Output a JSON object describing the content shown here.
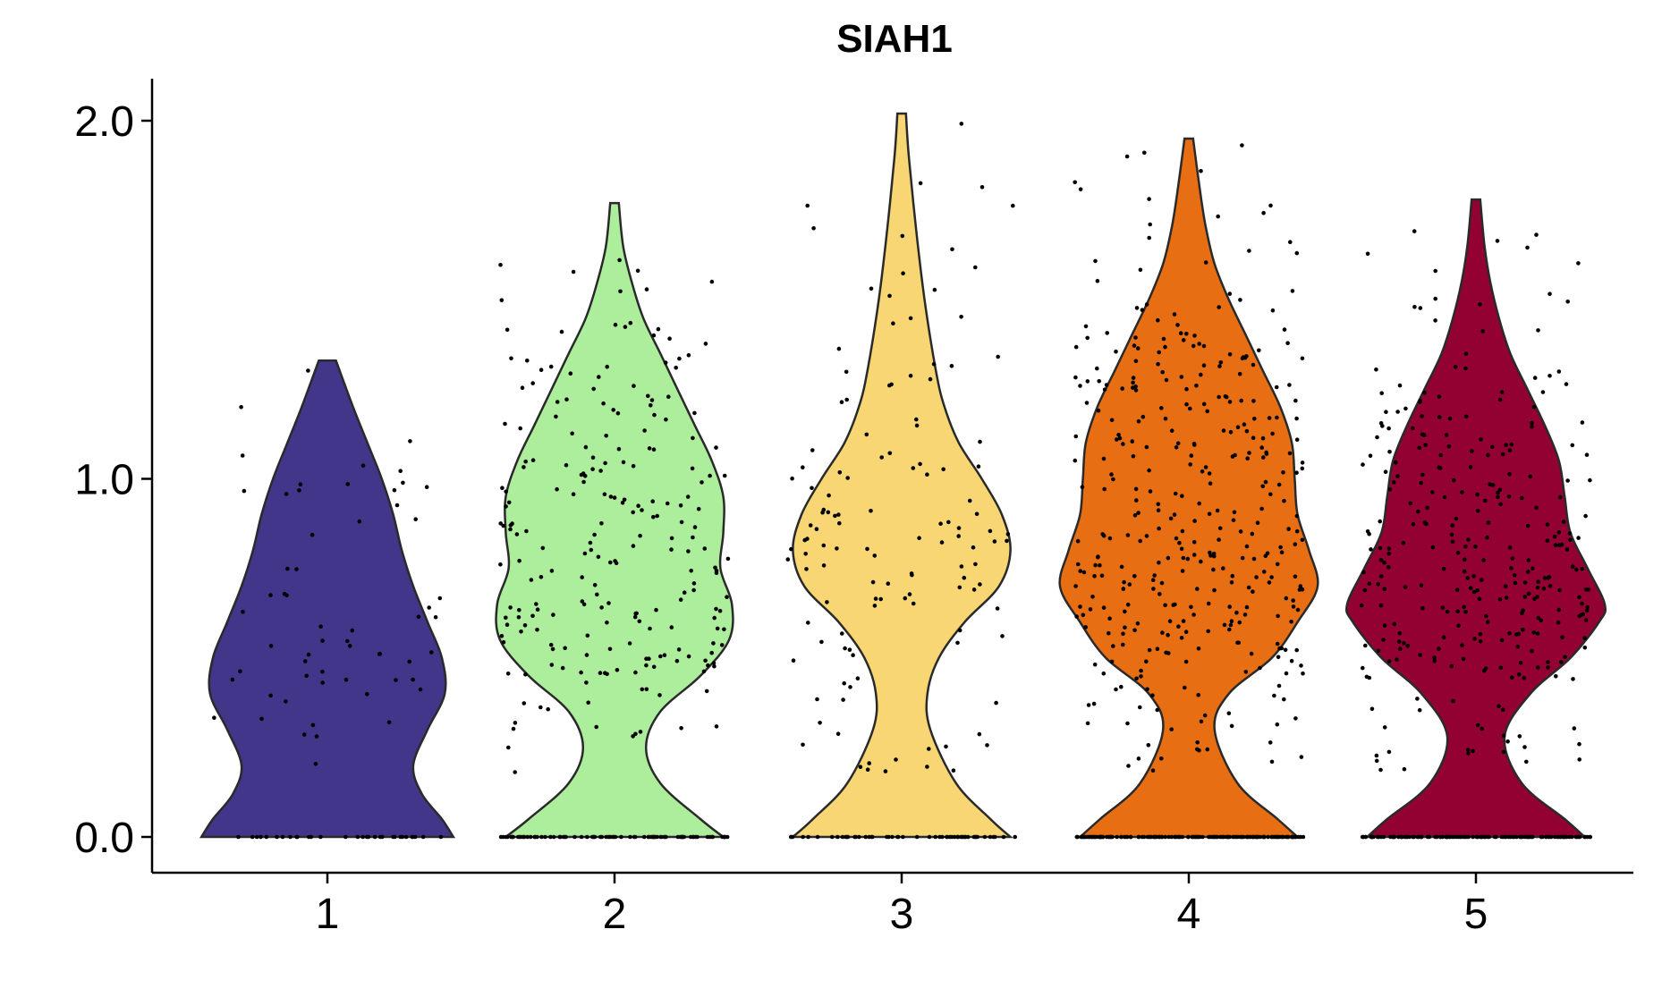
{
  "chart_data": {
    "type": "violin",
    "title": "SIAH1",
    "xlabel": "",
    "ylabel": "",
    "ylim": [
      -0.1,
      2.1
    ],
    "yticks": [
      {
        "value": 0.0,
        "label": "0.0"
      },
      {
        "value": 1.0,
        "label": "1.0"
      },
      {
        "value": 2.0,
        "label": "2.0"
      }
    ],
    "categories": [
      "1",
      "2",
      "3",
      "4",
      "5"
    ],
    "colors": [
      "#41368A",
      "#ADEE9C",
      "#F8D673",
      "#E76E12",
      "#930133"
    ],
    "grid": false,
    "legend": "none",
    "series": [
      {
        "category": "1",
        "color": "#41368A",
        "max": 1.33,
        "n_points": 90,
        "zero_fraction": 0.35,
        "density": [
          [
            0.0,
            0.44
          ],
          [
            0.05,
            0.4
          ],
          [
            0.12,
            0.33
          ],
          [
            0.2,
            0.3
          ],
          [
            0.3,
            0.35
          ],
          [
            0.4,
            0.41
          ],
          [
            0.5,
            0.4
          ],
          [
            0.6,
            0.35
          ],
          [
            0.7,
            0.3
          ],
          [
            0.8,
            0.26
          ],
          [
            0.9,
            0.23
          ],
          [
            1.0,
            0.19
          ],
          [
            1.1,
            0.14
          ],
          [
            1.2,
            0.09
          ],
          [
            1.33,
            0.03
          ]
        ]
      },
      {
        "category": "2",
        "color": "#ADEE9C",
        "max": 1.77,
        "n_points": 310,
        "zero_fraction": 0.28,
        "density": [
          [
            0.0,
            0.38
          ],
          [
            0.05,
            0.3
          ],
          [
            0.15,
            0.16
          ],
          [
            0.25,
            0.11
          ],
          [
            0.35,
            0.16
          ],
          [
            0.45,
            0.3
          ],
          [
            0.55,
            0.4
          ],
          [
            0.65,
            0.41
          ],
          [
            0.75,
            0.37
          ],
          [
            0.85,
            0.38
          ],
          [
            0.95,
            0.38
          ],
          [
            1.05,
            0.34
          ],
          [
            1.15,
            0.28
          ],
          [
            1.25,
            0.22
          ],
          [
            1.35,
            0.16
          ],
          [
            1.45,
            0.1
          ],
          [
            1.55,
            0.06
          ],
          [
            1.65,
            0.03
          ],
          [
            1.77,
            0.015
          ]
        ]
      },
      {
        "category": "3",
        "color": "#F8D673",
        "max": 2.02,
        "n_points": 180,
        "zero_fraction": 0.3,
        "density": [
          [
            0.0,
            0.38
          ],
          [
            0.05,
            0.31
          ],
          [
            0.15,
            0.19
          ],
          [
            0.3,
            0.1
          ],
          [
            0.4,
            0.09
          ],
          [
            0.5,
            0.13
          ],
          [
            0.6,
            0.22
          ],
          [
            0.7,
            0.34
          ],
          [
            0.8,
            0.38
          ],
          [
            0.9,
            0.35
          ],
          [
            1.0,
            0.28
          ],
          [
            1.1,
            0.2
          ],
          [
            1.2,
            0.15
          ],
          [
            1.3,
            0.12
          ],
          [
            1.5,
            0.08
          ],
          [
            1.7,
            0.05
          ],
          [
            1.9,
            0.025
          ],
          [
            2.02,
            0.015
          ]
        ]
      },
      {
        "category": "4",
        "color": "#E76E12",
        "max": 1.95,
        "n_points": 520,
        "zero_fraction": 0.3,
        "density": [
          [
            0.0,
            0.38
          ],
          [
            0.05,
            0.31
          ],
          [
            0.15,
            0.17
          ],
          [
            0.3,
            0.09
          ],
          [
            0.4,
            0.14
          ],
          [
            0.5,
            0.29
          ],
          [
            0.6,
            0.38
          ],
          [
            0.7,
            0.45
          ],
          [
            0.8,
            0.42
          ],
          [
            0.9,
            0.38
          ],
          [
            1.0,
            0.37
          ],
          [
            1.1,
            0.36
          ],
          [
            1.2,
            0.32
          ],
          [
            1.3,
            0.26
          ],
          [
            1.4,
            0.2
          ],
          [
            1.5,
            0.14
          ],
          [
            1.6,
            0.09
          ],
          [
            1.7,
            0.06
          ],
          [
            1.8,
            0.04
          ],
          [
            1.95,
            0.015
          ]
        ]
      },
      {
        "category": "5",
        "color": "#930133",
        "max": 1.78,
        "n_points": 420,
        "zero_fraction": 0.3,
        "density": [
          [
            0.0,
            0.38
          ],
          [
            0.05,
            0.31
          ],
          [
            0.15,
            0.16
          ],
          [
            0.28,
            0.1
          ],
          [
            0.4,
            0.19
          ],
          [
            0.5,
            0.33
          ],
          [
            0.6,
            0.43
          ],
          [
            0.65,
            0.45
          ],
          [
            0.75,
            0.39
          ],
          [
            0.85,
            0.33
          ],
          [
            0.95,
            0.31
          ],
          [
            1.05,
            0.29
          ],
          [
            1.15,
            0.24
          ],
          [
            1.25,
            0.18
          ],
          [
            1.35,
            0.12
          ],
          [
            1.45,
            0.08
          ],
          [
            1.55,
            0.05
          ],
          [
            1.65,
            0.03
          ],
          [
            1.78,
            0.015
          ]
        ]
      }
    ]
  }
}
